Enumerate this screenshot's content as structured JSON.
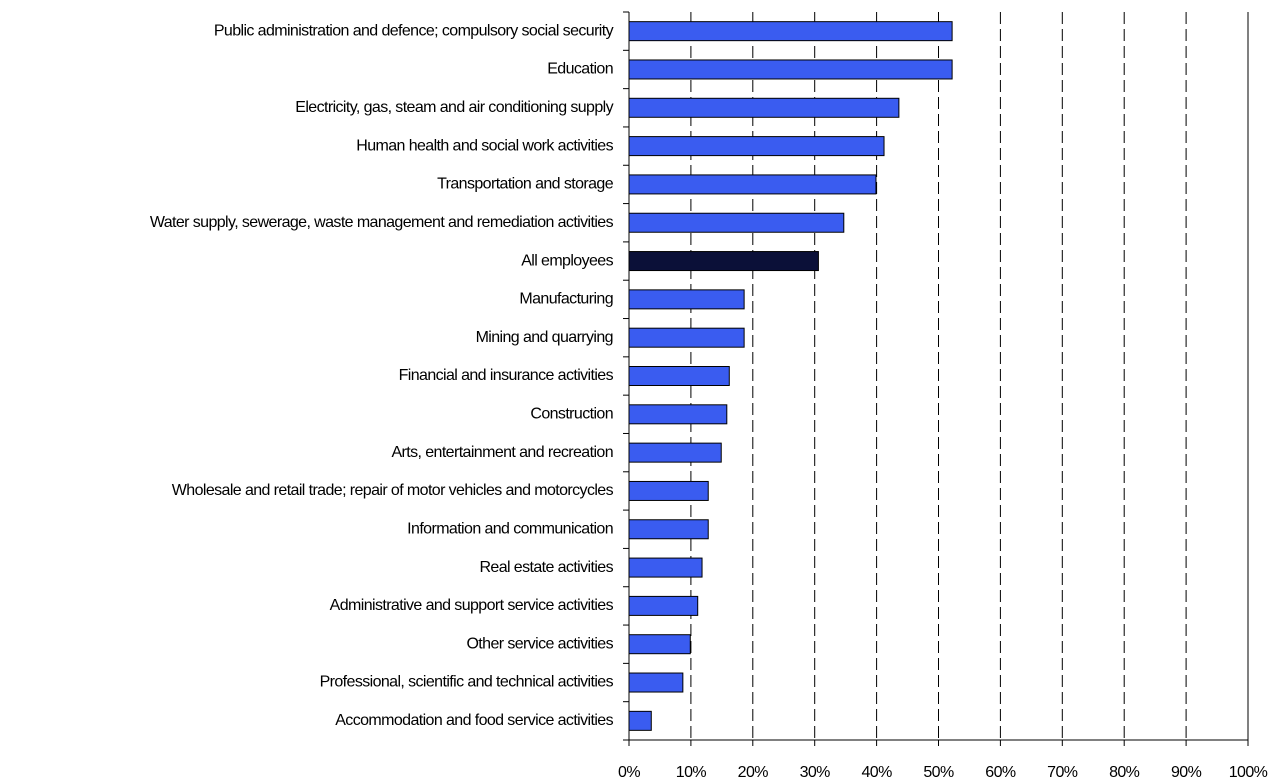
{
  "chart_data": {
    "type": "bar",
    "orientation": "horizontal",
    "categories": [
      "Public administration and defence; compulsory social security",
      "Education",
      "Electricity, gas, steam and air conditioning supply",
      "Human health and social work activities",
      "Transportation and storage",
      "Water supply, sewerage, waste management and remediation activities",
      "All employees",
      "Manufacturing",
      "Mining and quarrying",
      "Financial and insurance activities",
      "Construction",
      "Arts, entertainment and recreation",
      "Wholesale and retail trade; repair of motor vehicles and motorcycles",
      "Information and communication",
      "Real estate activities",
      "Administrative and support service activities",
      "Other service activities",
      "Professional, scientific and technical activities",
      "Accommodation and food service activities"
    ],
    "values": [
      52.2,
      52.2,
      43.6,
      41.2,
      39.9,
      34.7,
      30.6,
      18.6,
      18.6,
      16.2,
      15.8,
      14.9,
      12.8,
      12.8,
      11.8,
      11.1,
      9.9,
      8.7,
      3.6
    ],
    "colors": [
      "#3a5cf0",
      "#3a5cf0",
      "#3a5cf0",
      "#3a5cf0",
      "#3a5cf0",
      "#3a5cf0",
      "#0b1038",
      "#3a5cf0",
      "#3a5cf0",
      "#3a5cf0",
      "#3a5cf0",
      "#3a5cf0",
      "#3a5cf0",
      "#3a5cf0",
      "#3a5cf0",
      "#3a5cf0",
      "#3a5cf0",
      "#3a5cf0",
      "#3a5cf0"
    ],
    "xlim": [
      0,
      100
    ],
    "xticks": [
      {
        "value": 0,
        "label": "0%"
      },
      {
        "value": 10,
        "label": "10%"
      },
      {
        "value": 20,
        "label": "20%"
      },
      {
        "value": 30,
        "label": "30%"
      },
      {
        "value": 40,
        "label": "40%"
      },
      {
        "value": 50,
        "label": "50%"
      },
      {
        "value": 60,
        "label": "60%"
      },
      {
        "value": 70,
        "label": "70%"
      },
      {
        "value": 80,
        "label": "80%"
      },
      {
        "value": 90,
        "label": "90%"
      },
      {
        "value": 100,
        "label": "100%"
      }
    ],
    "grid": true
  }
}
